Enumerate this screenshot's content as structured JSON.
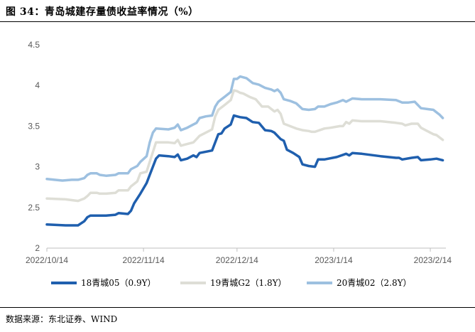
{
  "figure_title": "图 34：青岛城建存量债收益率情况（%）",
  "source_note": "数据来源：东北证券、WIND",
  "colors": {
    "s1": "#1F5FAE",
    "s2": "#DEDED6",
    "s3": "#9DC0E0",
    "axis": "#BFBFBF",
    "tick": "#595959"
  },
  "chart_data": {
    "type": "line",
    "title": "",
    "xlabel": "",
    "ylabel": "",
    "ylim": [
      2,
      4.5
    ],
    "yticks": [
      "2",
      "2.5",
      "3",
      "3.5",
      "4",
      "4.5"
    ],
    "xtick_labels": [
      "2022/10/14",
      "2022/11/14",
      "2022/12/14",
      "2023/1/14",
      "2023/2/14"
    ],
    "xtick_days": [
      0,
      31,
      61,
      92,
      123
    ],
    "grid": false,
    "legend_position": "bottom",
    "series": [
      {
        "name": "18青城05（0.9Y）",
        "color_key": "s1",
        "points": [
          [
            0,
            2.29
          ],
          [
            6,
            2.28
          ],
          [
            10,
            2.28
          ],
          [
            12,
            2.33
          ],
          [
            13,
            2.38
          ],
          [
            14,
            2.4
          ],
          [
            19,
            2.4
          ],
          [
            22,
            2.41
          ],
          [
            23,
            2.43
          ],
          [
            26,
            2.42
          ],
          [
            27,
            2.46
          ],
          [
            28,
            2.55
          ],
          [
            30,
            2.67
          ],
          [
            32,
            2.8
          ],
          [
            33,
            2.9
          ],
          [
            34,
            3.0
          ],
          [
            35,
            3.1
          ],
          [
            36,
            3.14
          ],
          [
            39,
            3.13
          ],
          [
            41,
            3.12
          ],
          [
            42,
            3.15
          ],
          [
            43,
            3.08
          ],
          [
            45,
            3.1
          ],
          [
            47,
            3.14
          ],
          [
            48,
            3.12
          ],
          [
            49,
            3.17
          ],
          [
            53,
            3.2
          ],
          [
            54,
            3.3
          ],
          [
            55,
            3.4
          ],
          [
            56,
            3.41
          ],
          [
            57,
            3.47
          ],
          [
            59,
            3.52
          ],
          [
            60,
            3.63
          ],
          [
            61,
            3.62
          ],
          [
            62,
            3.61
          ],
          [
            64,
            3.6
          ],
          [
            66,
            3.55
          ],
          [
            68,
            3.54
          ],
          [
            70,
            3.45
          ],
          [
            72,
            3.44
          ],
          [
            73,
            3.42
          ],
          [
            75,
            3.34
          ],
          [
            76,
            3.32
          ],
          [
            77,
            3.21
          ],
          [
            79,
            3.17
          ],
          [
            81,
            3.12
          ],
          [
            82,
            3.03
          ],
          [
            84,
            3.01
          ],
          [
            86,
            3.0
          ],
          [
            87,
            3.09
          ],
          [
            89,
            3.09
          ],
          [
            93,
            3.12
          ],
          [
            96,
            3.16
          ],
          [
            97,
            3.14
          ],
          [
            98,
            3.17
          ],
          [
            101,
            3.16
          ],
          [
            107,
            3.13
          ],
          [
            112,
            3.11
          ],
          [
            113,
            3.11
          ],
          [
            114,
            3.09
          ],
          [
            117,
            3.11
          ],
          [
            119,
            3.12
          ],
          [
            120,
            3.08
          ],
          [
            123,
            3.09
          ],
          [
            125,
            3.1
          ],
          [
            126,
            3.09
          ],
          [
            127,
            3.08
          ]
        ]
      },
      {
        "name": "19青城G2（1.8Y）",
        "color_key": "s2",
        "points": [
          [
            0,
            2.61
          ],
          [
            6,
            2.6
          ],
          [
            8,
            2.59
          ],
          [
            10,
            2.58
          ],
          [
            12,
            2.61
          ],
          [
            13,
            2.64
          ],
          [
            14,
            2.68
          ],
          [
            16,
            2.68
          ],
          [
            17,
            2.67
          ],
          [
            19,
            2.67
          ],
          [
            22,
            2.68
          ],
          [
            23,
            2.71
          ],
          [
            26,
            2.71
          ],
          [
            27,
            2.76
          ],
          [
            29,
            2.82
          ],
          [
            30,
            2.92
          ],
          [
            32,
            2.94
          ],
          [
            33,
            3.06
          ],
          [
            34,
            3.18
          ],
          [
            35,
            3.3
          ],
          [
            39,
            3.3
          ],
          [
            41,
            3.29
          ],
          [
            42,
            3.33
          ],
          [
            43,
            3.26
          ],
          [
            45,
            3.28
          ],
          [
            47,
            3.3
          ],
          [
            48,
            3.34
          ],
          [
            49,
            3.38
          ],
          [
            51,
            3.42
          ],
          [
            53,
            3.46
          ],
          [
            54,
            3.62
          ],
          [
            55,
            3.7
          ],
          [
            56,
            3.73
          ],
          [
            57,
            3.76
          ],
          [
            59,
            3.82
          ],
          [
            60,
            3.94
          ],
          [
            61,
            3.93
          ],
          [
            62,
            3.91
          ],
          [
            63,
            3.9
          ],
          [
            65,
            3.86
          ],
          [
            67,
            3.83
          ],
          [
            69,
            3.74
          ],
          [
            71,
            3.74
          ],
          [
            73,
            3.68
          ],
          [
            74,
            3.7
          ],
          [
            75,
            3.65
          ],
          [
            76,
            3.53
          ],
          [
            78,
            3.5
          ],
          [
            80,
            3.47
          ],
          [
            82,
            3.45
          ],
          [
            84,
            3.44
          ],
          [
            85,
            3.43
          ],
          [
            86,
            3.43
          ],
          [
            89,
            3.47
          ],
          [
            91,
            3.48
          ],
          [
            94,
            3.5
          ],
          [
            95,
            3.5
          ],
          [
            96,
            3.55
          ],
          [
            97,
            3.53
          ],
          [
            98,
            3.57
          ],
          [
            101,
            3.56
          ],
          [
            107,
            3.56
          ],
          [
            112,
            3.54
          ],
          [
            114,
            3.53
          ],
          [
            115,
            3.51
          ],
          [
            117,
            3.53
          ],
          [
            119,
            3.53
          ],
          [
            120,
            3.48
          ],
          [
            122,
            3.44
          ],
          [
            124,
            3.4
          ],
          [
            125,
            3.39
          ],
          [
            126,
            3.36
          ],
          [
            127,
            3.33
          ]
        ]
      },
      {
        "name": "20青城02（2.8Y）",
        "color_key": "s3",
        "points": [
          [
            0,
            2.85
          ],
          [
            5,
            2.83
          ],
          [
            8,
            2.84
          ],
          [
            10,
            2.84
          ],
          [
            12,
            2.86
          ],
          [
            13,
            2.9
          ],
          [
            14,
            2.92
          ],
          [
            16,
            2.92
          ],
          [
            17,
            2.9
          ],
          [
            19,
            2.89
          ],
          [
            22,
            2.9
          ],
          [
            23,
            2.92
          ],
          [
            26,
            2.92
          ],
          [
            27,
            2.97
          ],
          [
            29,
            3.01
          ],
          [
            30,
            3.06
          ],
          [
            32,
            3.13
          ],
          [
            33,
            3.3
          ],
          [
            34,
            3.42
          ],
          [
            35,
            3.47
          ],
          [
            39,
            3.46
          ],
          [
            41,
            3.48
          ],
          [
            42,
            3.52
          ],
          [
            43,
            3.45
          ],
          [
            45,
            3.48
          ],
          [
            47,
            3.52
          ],
          [
            48,
            3.54
          ],
          [
            49,
            3.6
          ],
          [
            51,
            3.62
          ],
          [
            53,
            3.63
          ],
          [
            54,
            3.74
          ],
          [
            55,
            3.8
          ],
          [
            56,
            3.83
          ],
          [
            57,
            3.86
          ],
          [
            59,
            3.92
          ],
          [
            60,
            4.08
          ],
          [
            61,
            4.08
          ],
          [
            62,
            4.11
          ],
          [
            64,
            4.09
          ],
          [
            66,
            4.03
          ],
          [
            68,
            4.01
          ],
          [
            70,
            3.97
          ],
          [
            72,
            3.95
          ],
          [
            73,
            3.93
          ],
          [
            74,
            3.95
          ],
          [
            75,
            3.91
          ],
          [
            76,
            3.83
          ],
          [
            78,
            3.81
          ],
          [
            80,
            3.78
          ],
          [
            82,
            3.71
          ],
          [
            84,
            3.7
          ],
          [
            86,
            3.71
          ],
          [
            87,
            3.74
          ],
          [
            89,
            3.74
          ],
          [
            91,
            3.77
          ],
          [
            93,
            3.79
          ],
          [
            95,
            3.82
          ],
          [
            96,
            3.8
          ],
          [
            98,
            3.84
          ],
          [
            101,
            3.83
          ],
          [
            107,
            3.83
          ],
          [
            112,
            3.82
          ],
          [
            114,
            3.79
          ],
          [
            116,
            3.79
          ],
          [
            118,
            3.8
          ],
          [
            120,
            3.72
          ],
          [
            122,
            3.71
          ],
          [
            124,
            3.7
          ],
          [
            125,
            3.67
          ],
          [
            126,
            3.64
          ],
          [
            127,
            3.6
          ]
        ]
      }
    ]
  }
}
